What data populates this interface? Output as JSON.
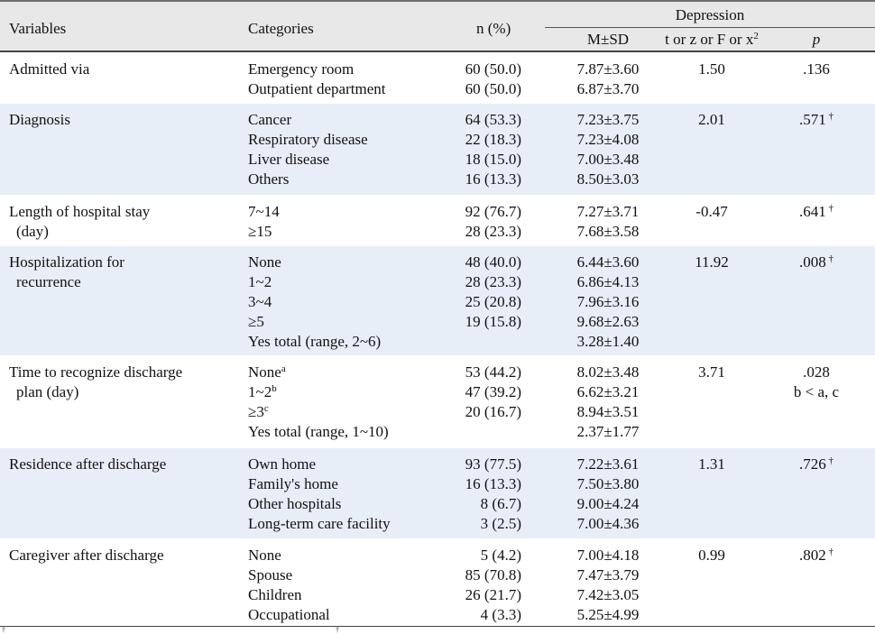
{
  "header": {
    "variables": "Variables",
    "categories": "Categories",
    "n_pct": "n (%)",
    "depression": "Depression",
    "msd": "M±SD",
    "test": "t or z or F or x",
    "test_sup": "2",
    "p": "p"
  },
  "groups": [
    {
      "variable": [
        "Admitted via"
      ],
      "categories": [
        [
          "Emergency room",
          ""
        ],
        [
          "Outpatient department",
          ""
        ]
      ],
      "n": [
        "60 (50.0)",
        "60 (50.0)"
      ],
      "msd": [
        "7.87±3.60",
        "6.87±3.70"
      ],
      "test": "1.50",
      "p": [
        ".136"
      ],
      "p_sup": ""
    },
    {
      "variable": [
        "Diagnosis"
      ],
      "categories": [
        [
          "Cancer",
          ""
        ],
        [
          "Respiratory disease",
          ""
        ],
        [
          "Liver disease",
          ""
        ],
        [
          "Others",
          ""
        ]
      ],
      "n": [
        "64 (53.3)",
        "22 (18.3)",
        "18 (15.0)",
        "16 (13.3)"
      ],
      "msd": [
        "7.23±3.75",
        "7.23±4.08",
        "7.00±3.48",
        "8.50±3.03"
      ],
      "test": "2.01",
      "p": [
        ".571"
      ],
      "p_sup": "†"
    },
    {
      "variable": [
        "Length of hospital stay",
        "(day)"
      ],
      "categories": [
        [
          "7~14",
          ""
        ],
        [
          "≥15",
          ""
        ]
      ],
      "n": [
        "92 (76.7)",
        "28 (23.3)"
      ],
      "msd": [
        "7.27±3.71",
        "7.68±3.58"
      ],
      "test": "-0.47",
      "p": [
        ".641"
      ],
      "p_sup": "†"
    },
    {
      "variable": [
        "Hospitalization for",
        "recurrence"
      ],
      "categories": [
        [
          "None",
          ""
        ],
        [
          "1~2",
          ""
        ],
        [
          "3~4",
          ""
        ],
        [
          "≥5",
          ""
        ],
        [
          "Yes total (range, 2~6)",
          ""
        ]
      ],
      "n": [
        "48 (40.0)",
        "28 (23.3)",
        "25 (20.8)",
        "19 (15.8)",
        ""
      ],
      "msd": [
        "6.44±3.60",
        "6.86±4.13",
        "7.96±3.16",
        "9.68±2.63",
        "3.28±1.40"
      ],
      "test": "11.92",
      "p": [
        ".008"
      ],
      "p_sup": "†"
    },
    {
      "variable": [
        "Time to recognize discharge",
        "plan (day)"
      ],
      "categories": [
        [
          "None",
          "a"
        ],
        [
          "1~2",
          "b"
        ],
        [
          "≥3",
          "c"
        ],
        [
          "Yes total (range, 1~10)",
          ""
        ]
      ],
      "n": [
        "53 (44.2)",
        "47 (39.2)",
        "20 (16.7)",
        ""
      ],
      "msd": [
        "8.02±3.48",
        "6.62±3.21",
        "8.94±3.51",
        "2.37±1.77"
      ],
      "test": "3.71",
      "p": [
        ".028",
        "b < a, c"
      ],
      "p_sup": ""
    },
    {
      "variable": [
        "Residence after discharge"
      ],
      "categories": [
        [
          "Own home",
          ""
        ],
        [
          "Family's home",
          ""
        ],
        [
          "Other hospitals",
          ""
        ],
        [
          "Long-term care facility",
          ""
        ]
      ],
      "n": [
        "93 (77.5)",
        "16 (13.3)",
        "8 (6.7)",
        "3 (2.5)"
      ],
      "msd": [
        "7.22±3.61",
        "7.50±3.80",
        "9.00±4.24",
        "7.00±4.36"
      ],
      "test": "1.31",
      "p": [
        ".726"
      ],
      "p_sup": "†"
    },
    {
      "variable": [
        "Caregiver after discharge"
      ],
      "categories": [
        [
          "None",
          ""
        ],
        [
          "Spouse",
          ""
        ],
        [
          "Children",
          ""
        ],
        [
          "Occupational",
          ""
        ]
      ],
      "n": [
        "5 (4.2)",
        "85 (70.8)",
        "26 (21.7)",
        "4 (3.3)"
      ],
      "msd": [
        "7.00±4.18",
        "7.47±3.79",
        "7.42±3.05",
        "5.25±4.99"
      ],
      "test": "0.99",
      "p": [
        ".802"
      ],
      "p_sup": "†"
    }
  ],
  "footer": {
    "fragment_left": "†",
    "fragment_right": "†"
  }
}
